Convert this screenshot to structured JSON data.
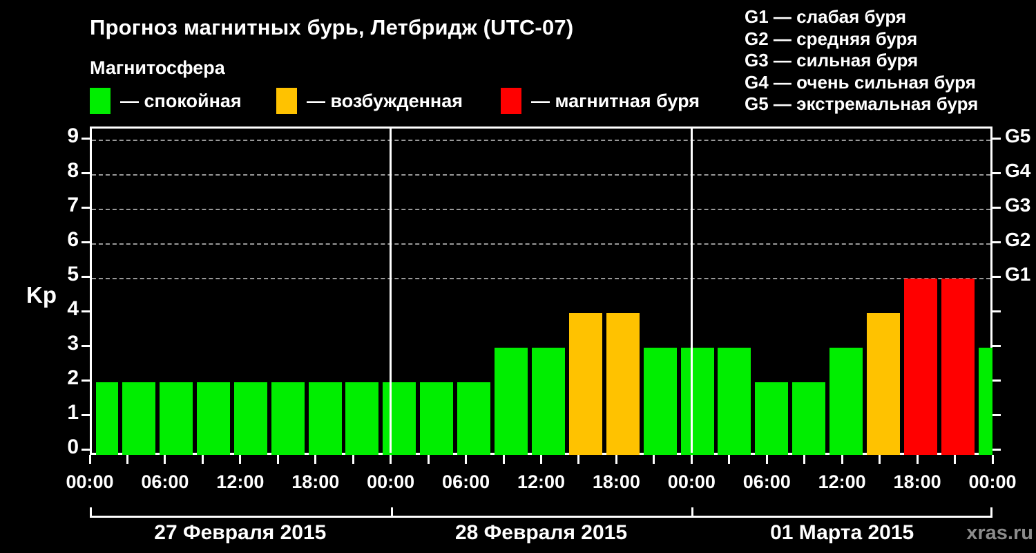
{
  "title": "Прогноз магнитных бурь, Летбридж (UTC-07)",
  "subtitle": "Магнитосфера",
  "legend": {
    "items": [
      {
        "key": "quiet",
        "label": "— спокойная",
        "color": "#00EE00"
      },
      {
        "key": "excited",
        "label": "— возбужденная",
        "color": "#FFC200"
      },
      {
        "key": "storm",
        "label": "— магнитная буря",
        "color": "#FF0000"
      }
    ]
  },
  "storm_scale_legend": [
    "G1 — слабая буря",
    "G2 — средняя буря",
    "G3 — сильная буря",
    "G4 — очень сильная буря",
    "G5 — экстремальная буря"
  ],
  "watermark": "xras.ru",
  "chart_data": {
    "type": "bar",
    "title": "Прогноз магнитных бурь, Летбридж (UTC-07)",
    "ylabel": "Kp",
    "ylim": [
      0,
      9
    ],
    "yticks": [
      0,
      1,
      2,
      3,
      4,
      5,
      6,
      7,
      8,
      9
    ],
    "grid_levels_kp": [
      5,
      6,
      7,
      8,
      9
    ],
    "grid_on": true,
    "bar_interval_hours": 3,
    "x_tick_labels": [
      "00:00",
      "06:00",
      "12:00",
      "18:00",
      "00:00",
      "06:00",
      "12:00",
      "18:00",
      "00:00",
      "06:00",
      "12:00",
      "18:00",
      "00:00"
    ],
    "days": [
      {
        "date": "27 Февраля 2015",
        "values": [
          2,
          2,
          2,
          2,
          2,
          2,
          2,
          2
        ]
      },
      {
        "date": "28 Февраля 2015",
        "values": [
          2,
          2,
          2,
          3,
          3,
          4,
          4,
          3
        ]
      },
      {
        "date": "01 Марта 2015",
        "values": [
          3,
          3,
          2,
          2,
          3,
          4,
          5,
          5
        ]
      }
    ],
    "next_day_partial_value": 3,
    "right_axis": [
      {
        "kp": 5,
        "label": "G1"
      },
      {
        "kp": 6,
        "label": "G2"
      },
      {
        "kp": 7,
        "label": "G3"
      },
      {
        "kp": 8,
        "label": "G4"
      },
      {
        "kp": 9,
        "label": "G5"
      }
    ],
    "colors": {
      "quiet": "#00EE00",
      "excited": "#FFC200",
      "storm": "#FF0000"
    }
  }
}
